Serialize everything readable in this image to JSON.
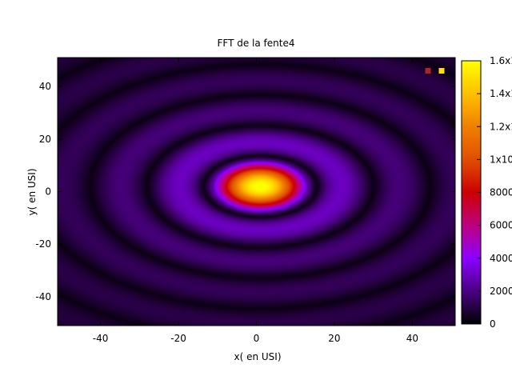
{
  "chart_data": {
    "type": "heatmap",
    "title": "FFT de la fente4",
    "xlabel": "x( en USI)",
    "ylabel": "y( en USI)",
    "xlim": [
      -51,
      51
    ],
    "ylim": [
      -51,
      51
    ],
    "x_ticks": [
      -40,
      -20,
      0,
      20,
      40
    ],
    "y_ticks": [
      -40,
      -20,
      0,
      20,
      40
    ],
    "colorbar": {
      "range": [
        0,
        16000
      ],
      "tick_values": [
        0,
        2000,
        4000,
        6000,
        8000,
        10000,
        12000,
        14000,
        16000
      ],
      "tick_labels": [
        "0",
        "2000",
        "4000",
        "6000",
        "8000",
        "1x10",
        "1.2x1",
        "1.4x1",
        "1.6x1"
      ],
      "palette": [
        "#000000",
        "#4b0082",
        "#8b00ff",
        "#c00080",
        "#cc0000",
        "#e05000",
        "#f08000",
        "#ffc000",
        "#ffff00"
      ]
    },
    "peak": {
      "x": 1,
      "y": 2,
      "value": 16000
    },
    "legend_markers": [
      {
        "color": "#b22222"
      },
      {
        "color": "#ffe000"
      }
    ]
  }
}
